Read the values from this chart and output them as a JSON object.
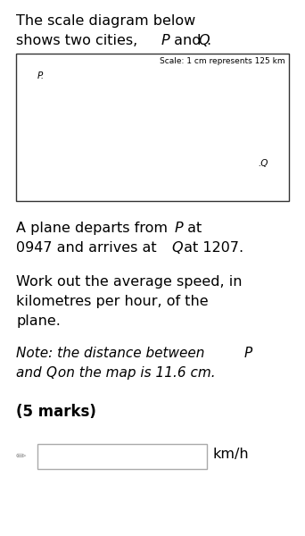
{
  "bg_color": "#ffffff",
  "text_color": "#000000",
  "box_border_color": "#333333",
  "input_box_border": "#aaaaaa",
  "title_line1": "The scale diagram below",
  "title_line2_pre": "shows two cities, ",
  "title_P": "P",
  "title_and": " and ",
  "title_Q": "Q",
  "title_period": ".",
  "scale_label": "Scale: 1 cm represents 125 km",
  "point_P_label": "P.",
  "point_Q_label": ".Q",
  "p1_pre": "A plane departs from ",
  "p1_P": "P",
  "p1_post": " at",
  "p2_pre": "0947 and arrives at ",
  "p2_Q": "Q",
  "p2_post": " at 1207.",
  "para2_line1": "Work out the average speed, in",
  "para2_line2": "kilometres per hour, of the",
  "para2_line3": "plane.",
  "note1_pre": "Note: the distance between ",
  "note1_P": "P",
  "note2_pre": "and ",
  "note2_Q": "Q",
  "note2_post": " on the map is 11.6 cm.",
  "marks": "(5 marks)",
  "unit_label": "km/h",
  "font_size_title": 11.5,
  "font_size_body": 11.5,
  "font_size_note": 11.0,
  "font_size_marks": 12,
  "font_size_scale": 6.5,
  "font_size_point": 7.5
}
